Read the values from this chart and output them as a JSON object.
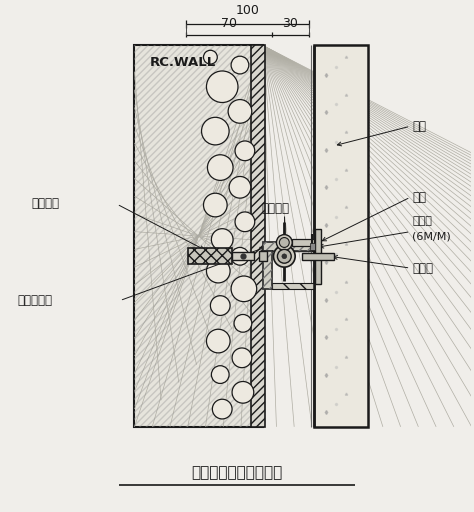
{
  "title": "外牆乾式吊掛施工詳圖",
  "bg_color": "#f0eeea",
  "line_color": "#1a1a1a",
  "labels": {
    "rc_wall": "RC.WALL",
    "stone": "石材",
    "bolt_expand": "膨脹螺絲",
    "bolt_fix": "固定螺絲",
    "pin": "插銷",
    "filler1": "填縫劑",
    "filler2": "(6M/M)",
    "spring": "伸縮片",
    "angle": "不銹鋼角鐵"
  },
  "dim_total": "100",
  "dim_left": "70",
  "dim_right": "30",
  "circles": [
    [
      222,
      430,
      16
    ],
    [
      240,
      405,
      12
    ],
    [
      215,
      385,
      14
    ],
    [
      245,
      365,
      10
    ],
    [
      220,
      348,
      13
    ],
    [
      240,
      328,
      11
    ],
    [
      215,
      310,
      12
    ],
    [
      245,
      293,
      10
    ],
    [
      222,
      275,
      11
    ],
    [
      240,
      258,
      9
    ],
    [
      218,
      243,
      12
    ],
    [
      244,
      225,
      13
    ],
    [
      220,
      208,
      10
    ],
    [
      243,
      190,
      9
    ],
    [
      218,
      172,
      12
    ],
    [
      242,
      155,
      10
    ],
    [
      220,
      138,
      9
    ],
    [
      243,
      120,
      11
    ],
    [
      222,
      103,
      10
    ],
    [
      240,
      452,
      9
    ],
    [
      210,
      460,
      7
    ]
  ]
}
